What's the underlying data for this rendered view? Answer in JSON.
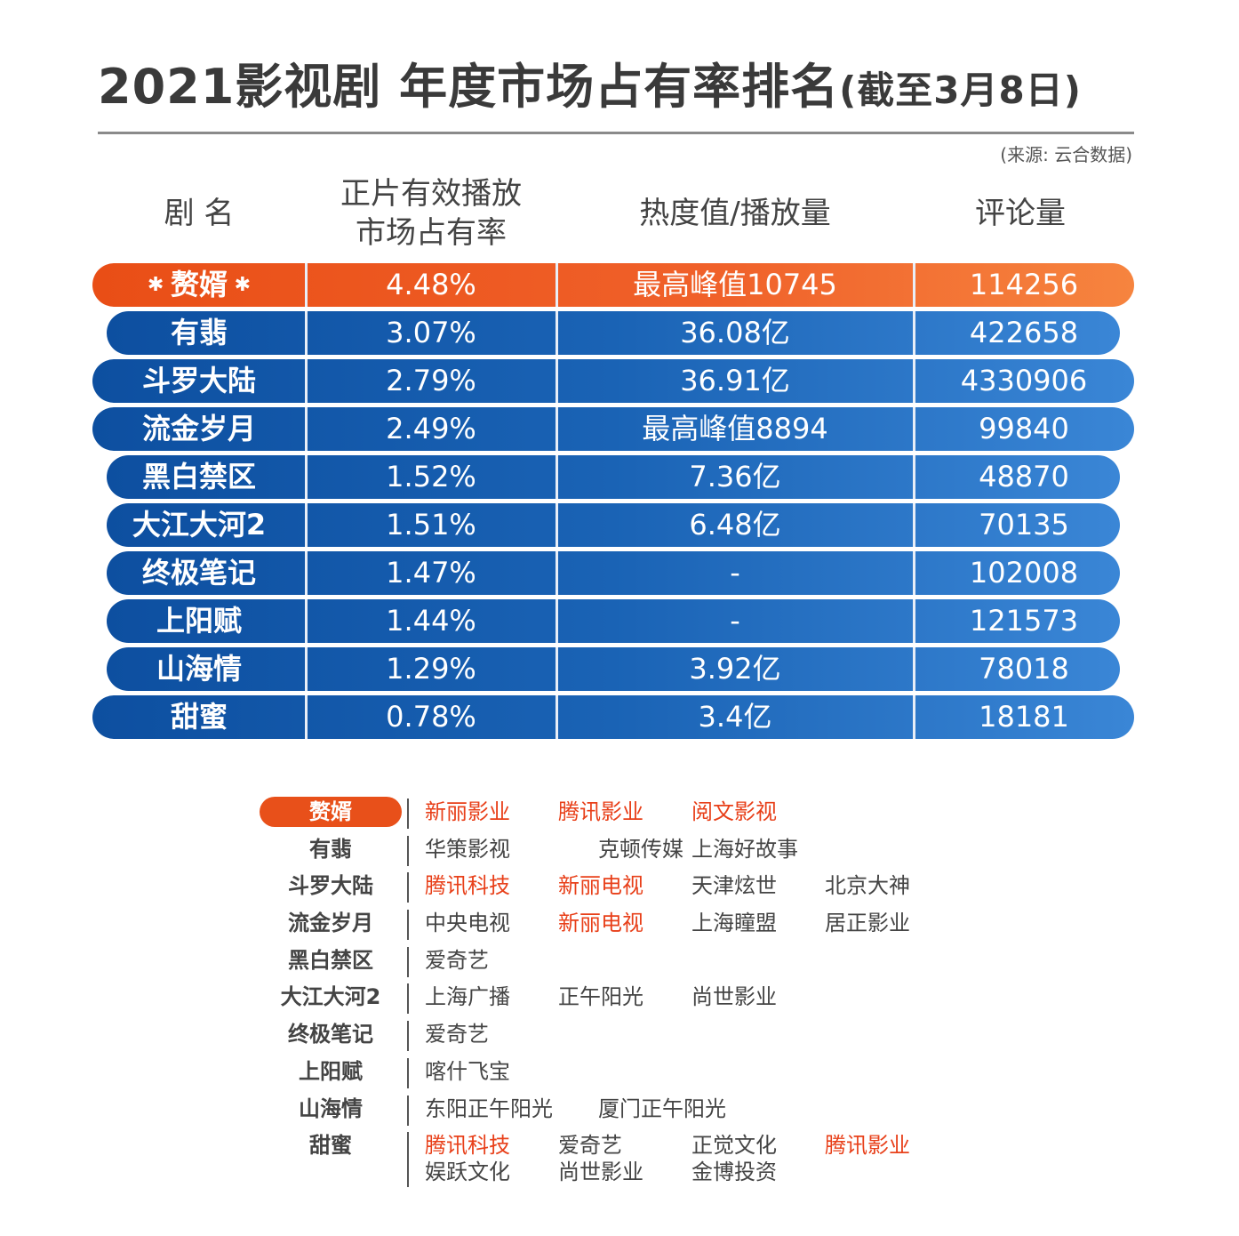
{
  "title": "2021影视剧 年度市场占有率排名",
  "title_paren": "(截至3月8日)",
  "source": "(来源: 云合数据)",
  "headers": {
    "name": "剧 名",
    "share_line1": "正片有效播放",
    "share_line2": "市场占有率",
    "heat": "热度值/播放量",
    "comments": "评论量"
  },
  "colors": {
    "accent_orange": "#e8501a",
    "row_blue": "#1a63b5",
    "highlight_text_red": "#e8401a"
  },
  "rows": [
    {
      "name": "赘婿",
      "share": "4.48%",
      "heat": "最高峰值10745",
      "comments": "114256",
      "highlight": true
    },
    {
      "name": "有翡",
      "share": "3.07%",
      "heat": "36.08亿",
      "comments": "422658"
    },
    {
      "name": "斗罗大陆",
      "share": "2.79%",
      "heat": "36.91亿",
      "comments": "4330906"
    },
    {
      "name": "流金岁月",
      "share": "2.49%",
      "heat": "最高峰值8894",
      "comments": "99840"
    },
    {
      "name": "黑白禁区",
      "share": "1.52%",
      "heat": "7.36亿",
      "comments": "48870"
    },
    {
      "name": "大江大河2",
      "share": "1.51%",
      "heat": "6.48亿",
      "comments": "70135"
    },
    {
      "name": "终极笔记",
      "share": "1.47%",
      "heat": "-",
      "comments": "102008"
    },
    {
      "name": "上阳赋",
      "share": "1.44%",
      "heat": "-",
      "comments": "121573"
    },
    {
      "name": "山海情",
      "share": "1.29%",
      "heat": "3.92亿",
      "comments": "78018"
    },
    {
      "name": "甜蜜",
      "share": "0.78%",
      "heat": "3.4亿",
      "comments": "18181"
    }
  ],
  "companies": [
    {
      "name": "赘婿",
      "line1": [
        {
          "text": "新丽影业",
          "red": true
        },
        {
          "text": "腾讯影业",
          "red": true
        },
        {
          "text": "阅文影视",
          "red": true
        }
      ]
    },
    {
      "name": "有翡",
      "line1": [
        {
          "text": "华策影视"
        },
        {
          "text": "克顿传媒"
        },
        {
          "text": "上海好故事"
        }
      ]
    },
    {
      "name": "斗罗大陆",
      "line1": [
        {
          "text": "腾讯科技",
          "red": true
        },
        {
          "text": "新丽电视",
          "red": true
        },
        {
          "text": "天津炫世"
        },
        {
          "text": "北京大神"
        }
      ]
    },
    {
      "name": "流金岁月",
      "line1": [
        {
          "text": "中央电视"
        },
        {
          "text": "新丽电视",
          "red": true
        },
        {
          "text": "上海瞳盟"
        },
        {
          "text": "居正影业"
        }
      ]
    },
    {
      "name": "黑白禁区",
      "line1": [
        {
          "text": "爱奇艺"
        }
      ]
    },
    {
      "name": "大江大河2",
      "line1": [
        {
          "text": "上海广播"
        },
        {
          "text": "正午阳光"
        },
        {
          "text": "尚世影业"
        }
      ]
    },
    {
      "name": "终极笔记",
      "line1": [
        {
          "text": "爱奇艺"
        }
      ]
    },
    {
      "name": "上阳赋",
      "line1": [
        {
          "text": "喀什飞宝"
        }
      ]
    },
    {
      "name": "山海情",
      "line1": [
        {
          "text": "东阳正午阳光"
        },
        {
          "text": "厦门正午阳光"
        }
      ]
    },
    {
      "name": "甜蜜",
      "line1": [
        {
          "text": "腾讯科技",
          "red": true
        },
        {
          "text": "爱奇艺"
        },
        {
          "text": "正觉文化"
        },
        {
          "text": "腾讯影业",
          "red": true
        }
      ],
      "line2": [
        {
          "text": "娱跃文化"
        },
        {
          "text": "尚世影业"
        },
        {
          "text": "金博投资"
        }
      ]
    }
  ]
}
